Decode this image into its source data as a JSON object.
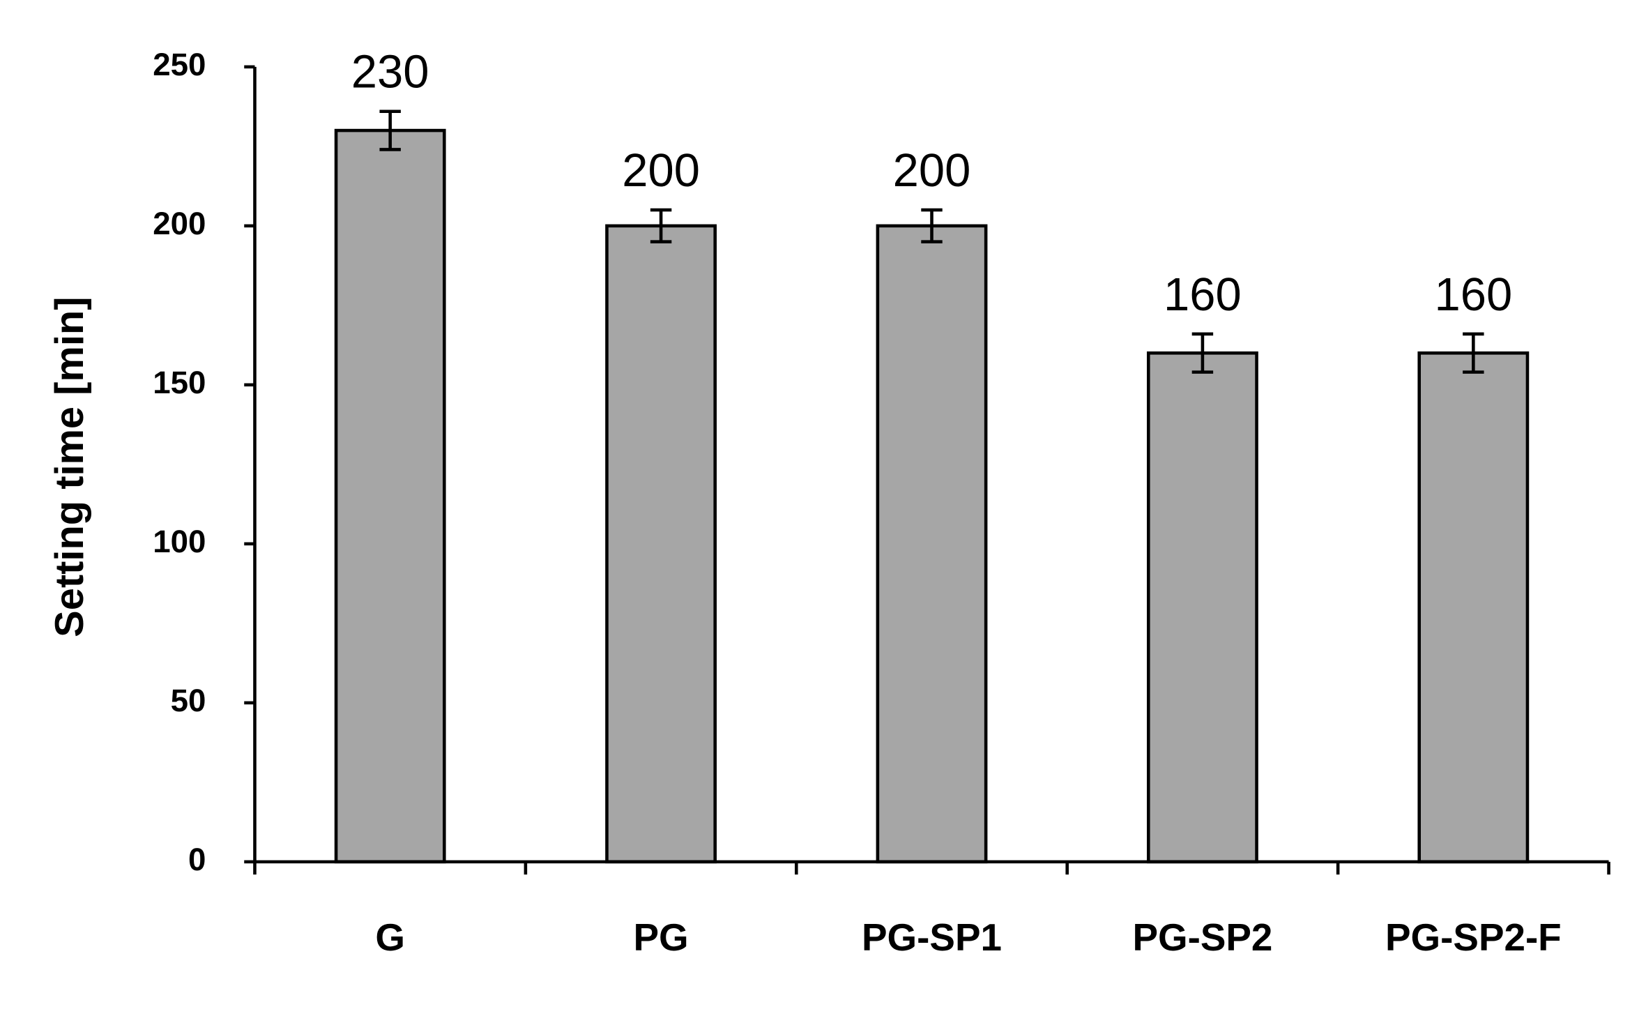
{
  "chart_data": {
    "type": "bar",
    "y_label": "Setting time [min]",
    "categories": [
      "G",
      "PG",
      "PG-SP1",
      "PG-SP2",
      "PG-SP2-F"
    ],
    "values": [
      230,
      200,
      200,
      160,
      160
    ],
    "errors": [
      6,
      5,
      5,
      6,
      6
    ],
    "color": "#a6a6a6",
    "ylim": [
      0,
      250
    ],
    "yticks": [
      0,
      50,
      100,
      150,
      200,
      250
    ],
    "grid": false
  }
}
